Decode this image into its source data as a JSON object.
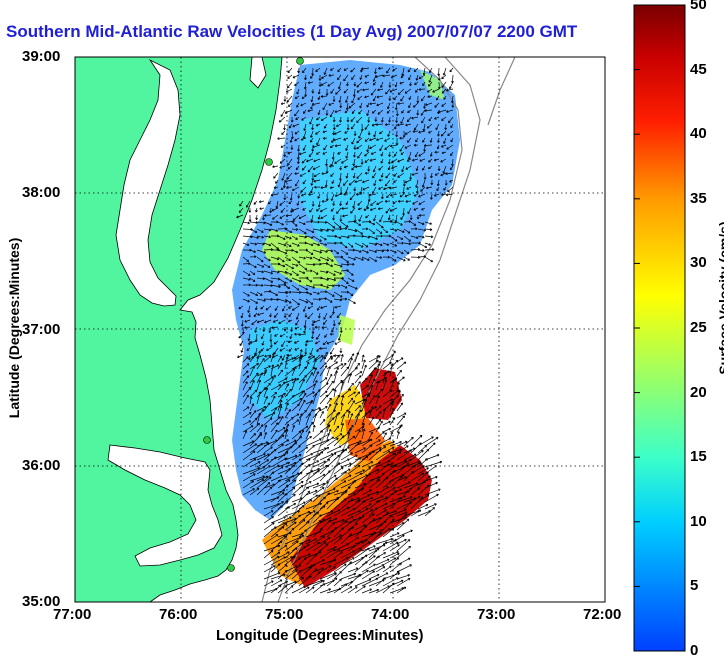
{
  "title": "Southern Mid-Atlantic Raw Velocities (1 Day Avg) 2007/07/07 2200 GMT",
  "xlabel": "Longitude (Degrees:Minutes)",
  "ylabel": "Latitude (Degrees:Minutes)",
  "colorbar": {
    "label": "Surface Velocity (cm/s)",
    "min": 0,
    "max": 50,
    "ticks": [
      "0",
      "5",
      "10",
      "15",
      "20",
      "25",
      "30",
      "35",
      "40",
      "45",
      "50"
    ]
  },
  "x_ticks": [
    "77:00",
    "76:00",
    "75:00",
    "74:00",
    "73:00",
    "72:00"
  ],
  "y_ticks": [
    "39:00",
    "38:00",
    "37:00",
    "36:00",
    "35:00"
  ],
  "colors": {
    "land": "#52f59f",
    "title": "#1f1fd6",
    "vectors": "#000000",
    "coast_line": "#000000",
    "bathymetry": "#888888",
    "stations": "#2ecc40"
  }
}
